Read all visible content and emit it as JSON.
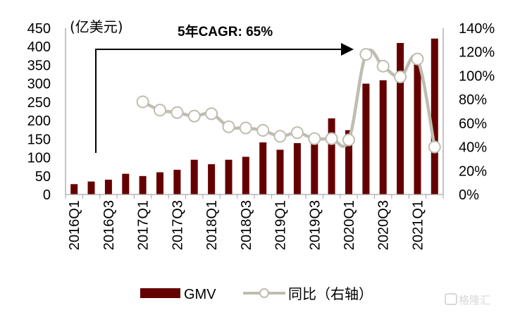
{
  "chart_data": {
    "type": "bar+line",
    "title": "",
    "unit_label": "(亿美元)",
    "annotation": "5年CAGR: 65%",
    "categories": [
      "2016Q1",
      "2016Q2",
      "2016Q3",
      "2016Q4",
      "2017Q1",
      "2017Q2",
      "2017Q3",
      "2017Q4",
      "2018Q1",
      "2018Q2",
      "2018Q3",
      "2018Q4",
      "2019Q1",
      "2019Q2",
      "2019Q3",
      "2019Q4",
      "2020Q1",
      "2020Q2",
      "2020Q3",
      "2020Q4",
      "2021Q1",
      "2021Q2"
    ],
    "x_tick_labels": [
      "2016Q1",
      "2016Q3",
      "2017Q1",
      "2017Q3",
      "2018Q1",
      "2018Q3",
      "2019Q1",
      "2019Q3",
      "2020Q1",
      "2020Q3",
      "2021Q1"
    ],
    "series": [
      {
        "name": "GMV",
        "type": "bar",
        "axis": "left",
        "color": "#650000",
        "values": [
          28,
          35,
          40,
          56,
          50,
          60,
          67,
          94,
          82,
          94,
          102,
          141,
          121,
          139,
          156,
          206,
          174,
          300,
          309,
          410,
          355,
          422
        ]
      },
      {
        "name": "同比（右轴）",
        "type": "line",
        "axis": "right",
        "color": "#bfbdb0",
        "values": [
          null,
          null,
          null,
          null,
          78,
          71,
          69,
          66,
          68,
          57,
          56,
          54,
          49,
          52,
          47,
          47,
          46,
          118,
          108,
          99,
          114,
          40
        ]
      }
    ],
    "y_left": {
      "ylim": [
        0,
        450
      ],
      "ticks": [
        "0",
        "50",
        "100",
        "150",
        "200",
        "250",
        "300",
        "350",
        "400",
        "450"
      ]
    },
    "y_right": {
      "ylim": [
        0,
        140
      ],
      "ticks": [
        "0%",
        "20%",
        "40%",
        "60%",
        "80%",
        "100%",
        "120%",
        "140%"
      ]
    },
    "legend": {
      "placement": "bottom",
      "items": [
        "GMV",
        "同比（右轴）"
      ]
    },
    "grid": false
  },
  "watermark": "格隆汇"
}
